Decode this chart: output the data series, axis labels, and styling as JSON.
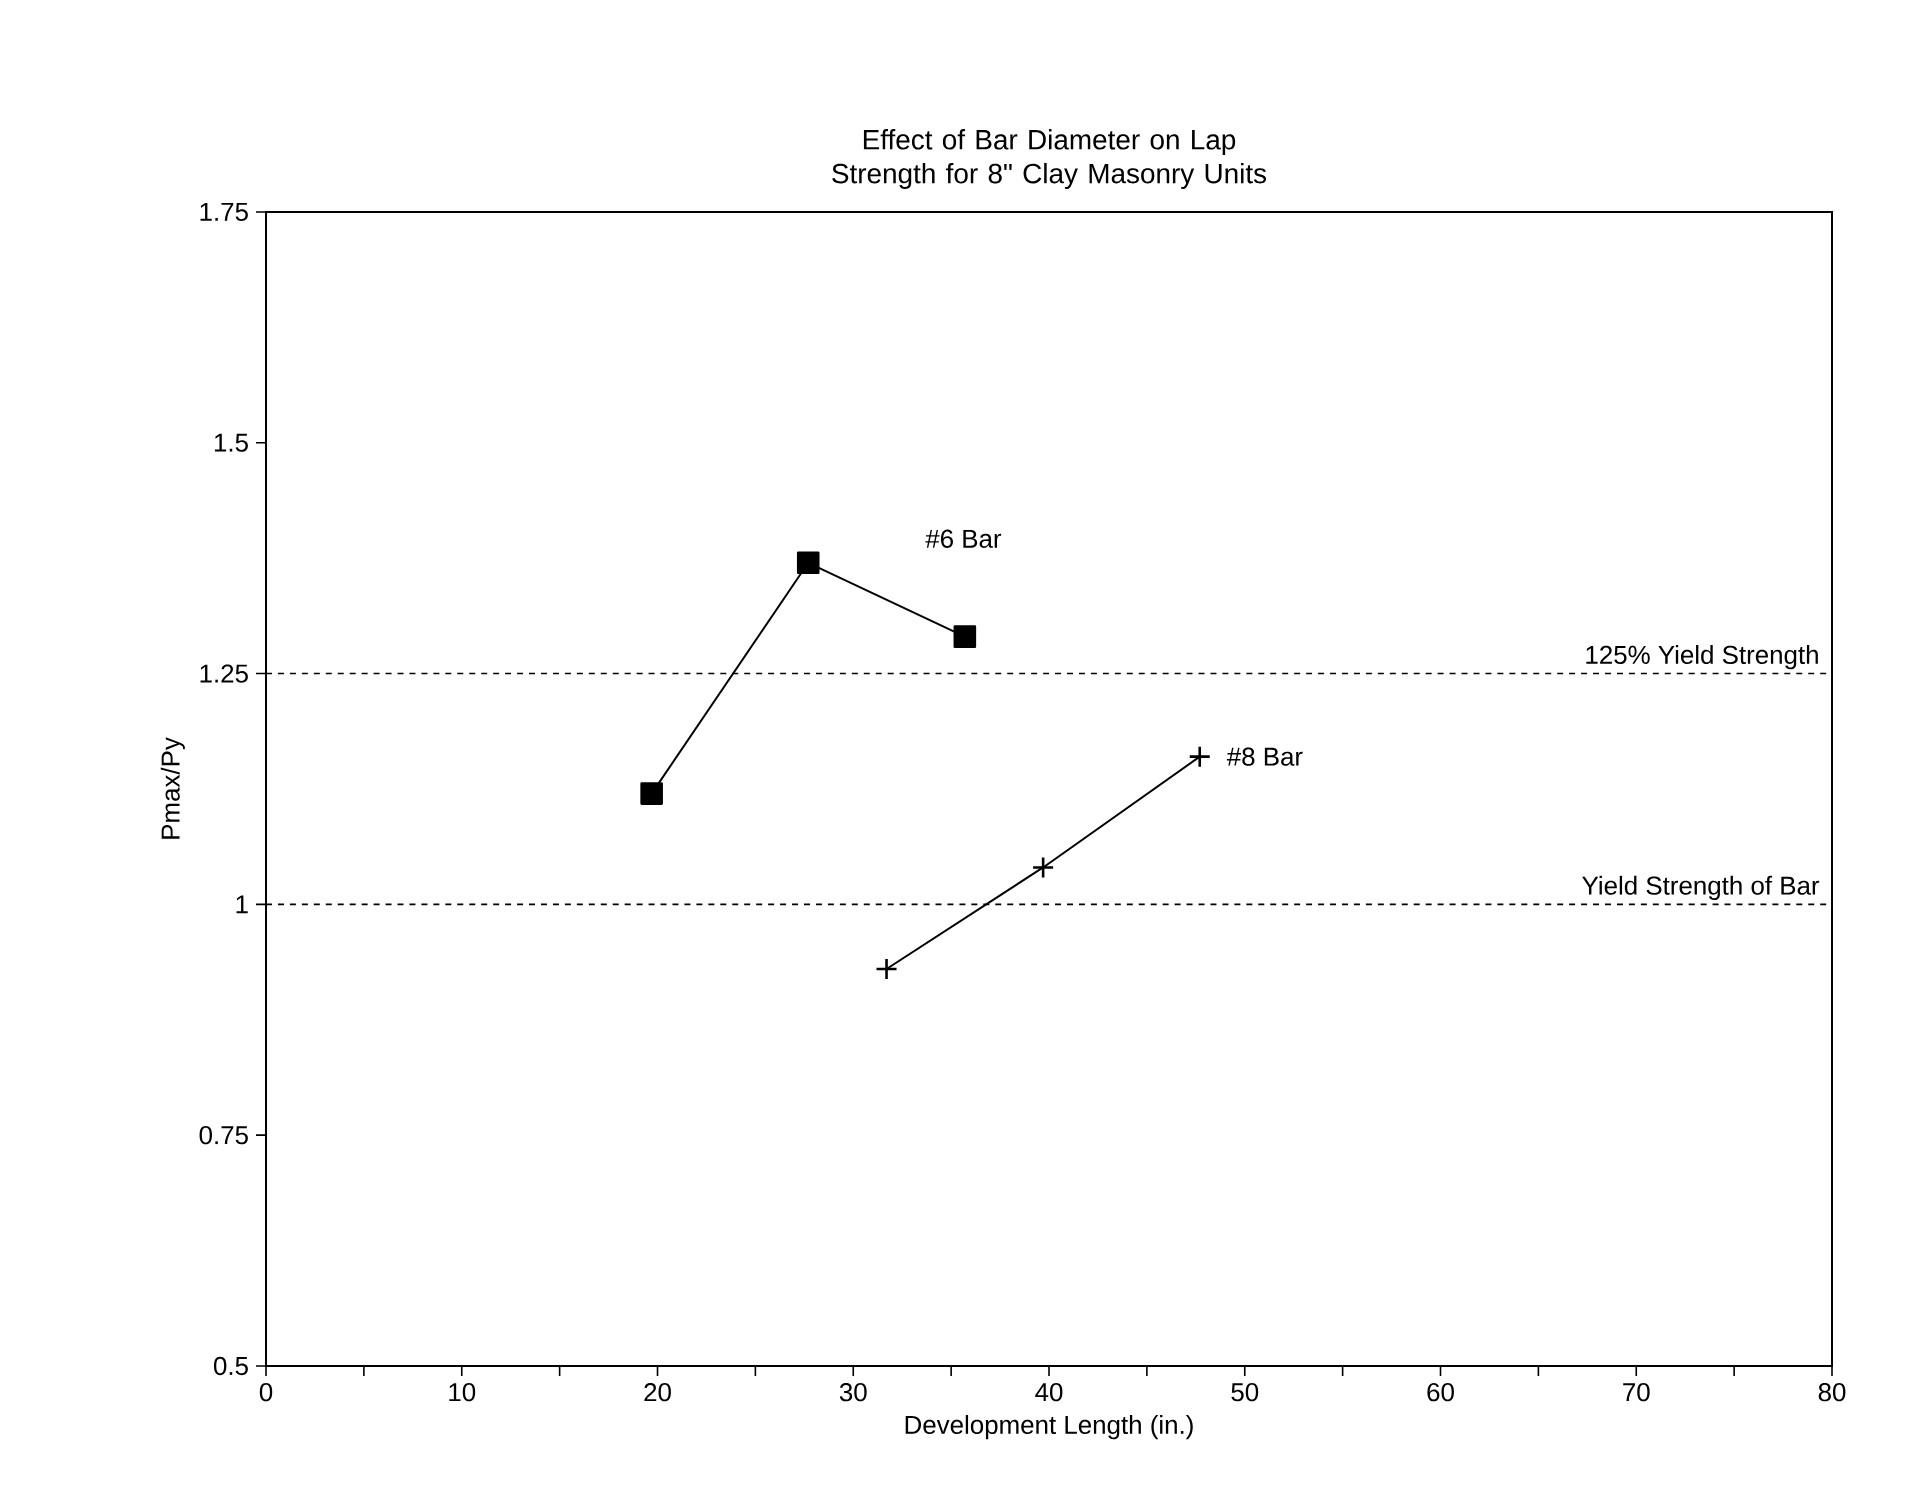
{
  "chart_data": {
    "type": "line",
    "title": "Effect of Bar Diameter on Lap Strength for 8\" Clay Masonry Units",
    "xlabel": "Development Length  (in.)",
    "ylabel": "Pmax/Py",
    "xlim": [
      0,
      80
    ],
    "xticks": [
      0,
      10,
      20,
      30,
      40,
      50,
      60,
      70,
      80
    ],
    "ylim": [
      0.5,
      1.75
    ],
    "yticks": [
      0.5,
      0.75,
      1,
      1.25,
      1.5,
      1.75
    ],
    "grid": false,
    "line_style": "solid",
    "series": [
      {
        "name": "#6 Bar",
        "color": "#000000",
        "marker": "square",
        "x": [
          19.7,
          27.7,
          35.7
        ],
        "values": [
          1.12,
          1.37,
          1.29
        ]
      },
      {
        "name": "#8 Bar",
        "color": "#000000",
        "marker": "cross",
        "x": [
          31.7,
          39.7,
          47.7
        ],
        "values": [
          0.93,
          1.04,
          1.16
        ]
      }
    ],
    "ref_lines": [
      {
        "axis": "y",
        "value": 1.25,
        "label": "125% Yield Strength",
        "line_style": "dashed"
      },
      {
        "axis": "y",
        "value": 1,
        "label": "Yield Strength of Bar",
        "line_style": "dashed"
      }
    ]
  }
}
